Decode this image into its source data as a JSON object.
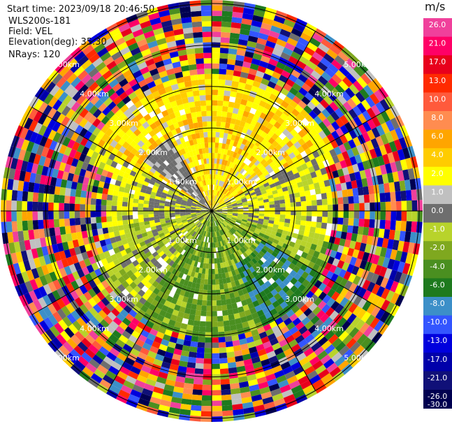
{
  "header": {
    "start_time": "Start time: 2023/09/18 20:46:50",
    "instrument": "WLS200s-181",
    "field": "Field: VEL",
    "elevation": "Elevation(deg): 35.30",
    "nrays": "NRays: 120"
  },
  "colorbar": {
    "unit": "m/s",
    "ticks": [
      "26.0",
      "21.0",
      "17.0",
      "13.0",
      "10.0",
      "8.0",
      "6.0",
      "4.0",
      "2.0",
      "1.0",
      "0.0",
      "-1.0",
      "-2.0",
      "-4.0",
      "-6.0",
      "-8.0",
      "-10.0",
      "-13.0",
      "-17.0",
      "-21.0",
      "-26.0",
      "-30.0"
    ],
    "colors": [
      "#f0409b",
      "#ff0066",
      "#e8001c",
      "#ff2a00",
      "#ff5a3c",
      "#ff8c50",
      "#ffa500",
      "#ffcc00",
      "#ffff00",
      "#c0c0c0",
      "#6e6e6e",
      "#b8d32b",
      "#7fa81f",
      "#4a8f20",
      "#1e7a1e",
      "#3c8fc8",
      "#3355ff",
      "#0000dd",
      "#0000aa",
      "#101078",
      "#000050"
    ]
  },
  "chart_data": {
    "type": "ppi",
    "field": "VEL",
    "units": "m/s",
    "ring_labels": [
      "1.00km",
      "2.00km",
      "3.00km",
      "4.00km",
      "5.00km"
    ],
    "n_rays": 120,
    "near_field_pattern": [
      {
        "direction": "north",
        "velocity": "2.0 to 6.0"
      },
      {
        "direction": "west",
        "velocity": "-1.0 to 1.0"
      },
      {
        "direction": "south",
        "velocity": "-6.0 to -2.0"
      },
      {
        "direction": "southeast",
        "velocity": "-8.0 to -6.0"
      },
      {
        "direction": "east",
        "velocity": "0.0 to 2.0"
      }
    ],
    "far_field": "noise"
  }
}
